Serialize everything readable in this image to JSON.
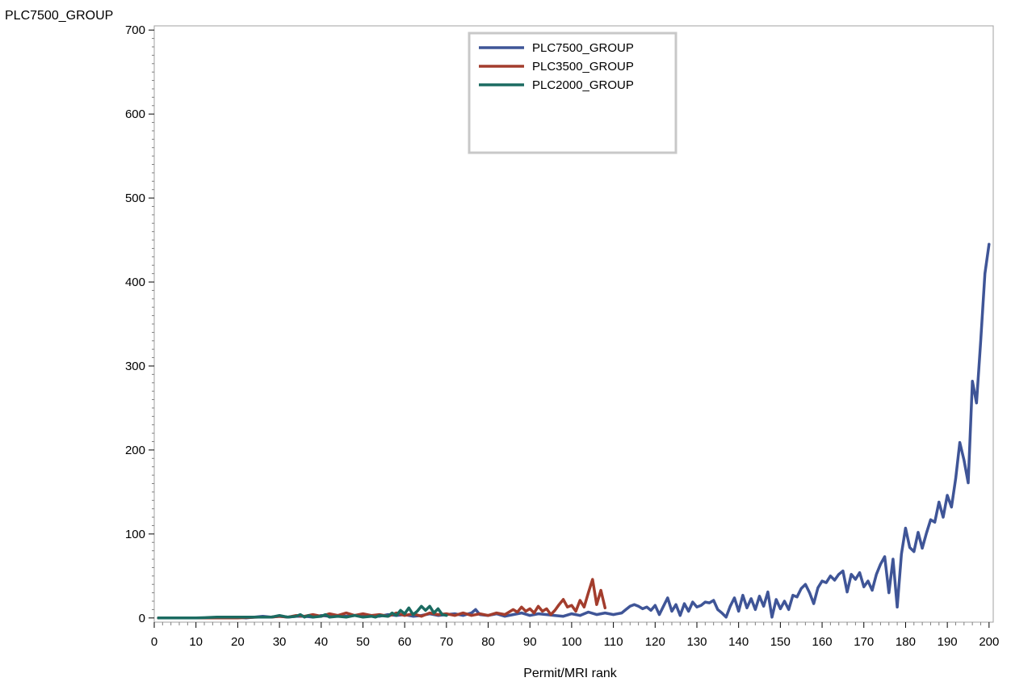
{
  "chart_data": {
    "type": "line",
    "title": "",
    "ylabel": "PLC7500_GROUP",
    "xlabel": "Permit/MRI rank",
    "xlim": [
      0,
      201
    ],
    "ylim": [
      -5,
      705
    ],
    "x_ticks": [
      0,
      10,
      20,
      30,
      40,
      50,
      60,
      70,
      80,
      90,
      100,
      110,
      120,
      130,
      140,
      150,
      160,
      170,
      180,
      190,
      200
    ],
    "y_ticks": [
      0,
      100,
      200,
      300,
      400,
      500,
      600,
      700
    ],
    "x_minor_step": 2,
    "y_minor_step": 10,
    "grid": false,
    "legend_position": "top-center",
    "series": [
      {
        "name": "PLC7500_GROUP",
        "color": "#3f5597",
        "points": [
          [
            1,
            0
          ],
          [
            5,
            0
          ],
          [
            10,
            0
          ],
          [
            15,
            0
          ],
          [
            16,
            1
          ],
          [
            17,
            0
          ],
          [
            18,
            1
          ],
          [
            20,
            1
          ],
          [
            22,
            0
          ],
          [
            24,
            1
          ],
          [
            26,
            2
          ],
          [
            28,
            1
          ],
          [
            30,
            2
          ],
          [
            32,
            1
          ],
          [
            34,
            2
          ],
          [
            36,
            2
          ],
          [
            38,
            1
          ],
          [
            40,
            3
          ],
          [
            42,
            2
          ],
          [
            44,
            3
          ],
          [
            46,
            2
          ],
          [
            48,
            3
          ],
          [
            50,
            4
          ],
          [
            52,
            3
          ],
          [
            54,
            2
          ],
          [
            56,
            4
          ],
          [
            58,
            3
          ],
          [
            60,
            4
          ],
          [
            62,
            2
          ],
          [
            64,
            3
          ],
          [
            66,
            5
          ],
          [
            68,
            3
          ],
          [
            70,
            4
          ],
          [
            72,
            5
          ],
          [
            74,
            3
          ],
          [
            76,
            6
          ],
          [
            77,
            10
          ],
          [
            78,
            4
          ],
          [
            80,
            3
          ],
          [
            82,
            5
          ],
          [
            84,
            2
          ],
          [
            86,
            4
          ],
          [
            88,
            6
          ],
          [
            90,
            3
          ],
          [
            92,
            5
          ],
          [
            94,
            4
          ],
          [
            96,
            3
          ],
          [
            98,
            2
          ],
          [
            100,
            5
          ],
          [
            102,
            3
          ],
          [
            104,
            7
          ],
          [
            106,
            4
          ],
          [
            108,
            6
          ],
          [
            110,
            4
          ],
          [
            112,
            6
          ],
          [
            113,
            10
          ],
          [
            114,
            14
          ],
          [
            115,
            16
          ],
          [
            116,
            14
          ],
          [
            117,
            11
          ],
          [
            118,
            13
          ],
          [
            119,
            9
          ],
          [
            120,
            15
          ],
          [
            121,
            4
          ],
          [
            122,
            14
          ],
          [
            123,
            24
          ],
          [
            124,
            8
          ],
          [
            125,
            16
          ],
          [
            126,
            3
          ],
          [
            127,
            17
          ],
          [
            128,
            8
          ],
          [
            129,
            19
          ],
          [
            130,
            13
          ],
          [
            131,
            15
          ],
          [
            132,
            19
          ],
          [
            133,
            18
          ],
          [
            134,
            21
          ],
          [
            135,
            10
          ],
          [
            136,
            6
          ],
          [
            137,
            1
          ],
          [
            138,
            14
          ],
          [
            139,
            24
          ],
          [
            140,
            8
          ],
          [
            141,
            27
          ],
          [
            142,
            12
          ],
          [
            143,
            23
          ],
          [
            144,
            10
          ],
          [
            145,
            26
          ],
          [
            146,
            14
          ],
          [
            147,
            31
          ],
          [
            148,
            1
          ],
          [
            149,
            22
          ],
          [
            150,
            11
          ],
          [
            151,
            20
          ],
          [
            152,
            10
          ],
          [
            153,
            27
          ],
          [
            154,
            25
          ],
          [
            155,
            35
          ],
          [
            156,
            40
          ],
          [
            157,
            30
          ],
          [
            158,
            17
          ],
          [
            159,
            36
          ],
          [
            160,
            44
          ],
          [
            161,
            42
          ],
          [
            162,
            50
          ],
          [
            163,
            45
          ],
          [
            164,
            52
          ],
          [
            165,
            56
          ],
          [
            166,
            31
          ],
          [
            167,
            52
          ],
          [
            168,
            46
          ],
          [
            169,
            54
          ],
          [
            170,
            37
          ],
          [
            171,
            44
          ],
          [
            172,
            33
          ],
          [
            173,
            52
          ],
          [
            174,
            64
          ],
          [
            175,
            73
          ],
          [
            176,
            30
          ],
          [
            177,
            70
          ],
          [
            178,
            13
          ],
          [
            179,
            76
          ],
          [
            180,
            107
          ],
          [
            181,
            84
          ],
          [
            182,
            79
          ],
          [
            183,
            102
          ],
          [
            184,
            83
          ],
          [
            185,
            101
          ],
          [
            186,
            117
          ],
          [
            187,
            114
          ],
          [
            188,
            138
          ],
          [
            189,
            120
          ],
          [
            190,
            146
          ],
          [
            191,
            132
          ],
          [
            192,
            166
          ],
          [
            193,
            209
          ],
          [
            194,
            188
          ],
          [
            195,
            161
          ],
          [
            196,
            282
          ],
          [
            197,
            256
          ],
          [
            198,
            330
          ],
          [
            199,
            410
          ],
          [
            200,
            445
          ]
        ]
      },
      {
        "name": "PLC3500_GROUP",
        "color": "#a33d2d",
        "points": [
          [
            1,
            0
          ],
          [
            10,
            0
          ],
          [
            20,
            0
          ],
          [
            25,
            1
          ],
          [
            28,
            1
          ],
          [
            30,
            2
          ],
          [
            32,
            1
          ],
          [
            34,
            3
          ],
          [
            36,
            2
          ],
          [
            38,
            4
          ],
          [
            40,
            2
          ],
          [
            42,
            5
          ],
          [
            44,
            3
          ],
          [
            46,
            6
          ],
          [
            48,
            3
          ],
          [
            50,
            5
          ],
          [
            52,
            3
          ],
          [
            54,
            4
          ],
          [
            56,
            2
          ],
          [
            58,
            6
          ],
          [
            60,
            3
          ],
          [
            62,
            5
          ],
          [
            64,
            2
          ],
          [
            66,
            6
          ],
          [
            68,
            4
          ],
          [
            70,
            5
          ],
          [
            72,
            3
          ],
          [
            74,
            6
          ],
          [
            76,
            3
          ],
          [
            78,
            5
          ],
          [
            80,
            3
          ],
          [
            82,
            6
          ],
          [
            84,
            4
          ],
          [
            86,
            10
          ],
          [
            87,
            7
          ],
          [
            88,
            13
          ],
          [
            89,
            8
          ],
          [
            90,
            11
          ],
          [
            91,
            6
          ],
          [
            92,
            14
          ],
          [
            93,
            8
          ],
          [
            94,
            11
          ],
          [
            95,
            4
          ],
          [
            96,
            9
          ],
          [
            97,
            16
          ],
          [
            98,
            22
          ],
          [
            99,
            13
          ],
          [
            100,
            15
          ],
          [
            101,
            8
          ],
          [
            102,
            21
          ],
          [
            103,
            13
          ],
          [
            104,
            30
          ],
          [
            105,
            46
          ],
          [
            106,
            16
          ],
          [
            107,
            33
          ],
          [
            108,
            12
          ]
        ]
      },
      {
        "name": "PLC2000_GROUP",
        "color": "#1b6b61",
        "points": [
          [
            1,
            0
          ],
          [
            5,
            0
          ],
          [
            10,
            0
          ],
          [
            15,
            1
          ],
          [
            20,
            1
          ],
          [
            25,
            1
          ],
          [
            28,
            1
          ],
          [
            30,
            3
          ],
          [
            32,
            1
          ],
          [
            34,
            2
          ],
          [
            35,
            4
          ],
          [
            36,
            1
          ],
          [
            37,
            3
          ],
          [
            38,
            1
          ],
          [
            40,
            2
          ],
          [
            41,
            4
          ],
          [
            42,
            1
          ],
          [
            44,
            2
          ],
          [
            46,
            1
          ],
          [
            48,
            3
          ],
          [
            50,
            1
          ],
          [
            52,
            2
          ],
          [
            53,
            1
          ],
          [
            54,
            3
          ],
          [
            56,
            2
          ],
          [
            57,
            6
          ],
          [
            58,
            3
          ],
          [
            59,
            9
          ],
          [
            60,
            5
          ],
          [
            61,
            12
          ],
          [
            62,
            4
          ],
          [
            63,
            8
          ],
          [
            64,
            14
          ],
          [
            65,
            9
          ],
          [
            66,
            14
          ],
          [
            67,
            6
          ],
          [
            68,
            11
          ],
          [
            69,
            4
          ],
          [
            70,
            3
          ]
        ]
      }
    ]
  }
}
